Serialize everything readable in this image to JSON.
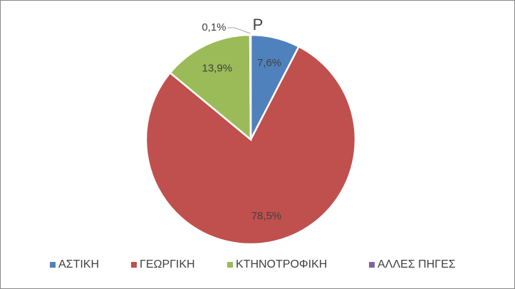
{
  "chart_data": {
    "type": "pie",
    "title": "P",
    "categories": [
      "ΑΣΤΙΚΗ",
      "ΓΕΩΡΓΙΚΗ",
      "ΚΤΗΝΟΤΡΟΦΙΚΗ",
      "ΑΛΛΕΣ ΠΗΓΕΣ"
    ],
    "values": [
      7.6,
      78.5,
      13.9,
      0.1
    ],
    "value_labels": [
      "7,6%",
      "78,5%",
      "13,9%",
      "0,1%"
    ],
    "colors": [
      "#4f81bd",
      "#c0504d",
      "#9bbb59",
      "#8064a2"
    ],
    "legend": "bottom"
  }
}
